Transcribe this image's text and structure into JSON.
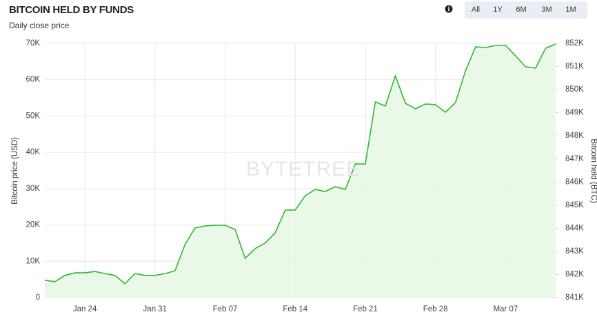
{
  "chart_data": {
    "type": "line",
    "title": "BITCOIN HELD BY FUNDS",
    "subtitle": "Daily close price",
    "watermark": "BYTETREE",
    "range_buttons": [
      "All",
      "1Y",
      "6M",
      "3M",
      "1M"
    ],
    "y_label": "Bitcoin price (USD)",
    "y2_label": "Bitcoin held (BTC)",
    "categories": [
      null,
      null,
      null,
      null,
      "Jan 24",
      null,
      null,
      null,
      null,
      null,
      null,
      "Jan 31",
      null,
      null,
      null,
      null,
      null,
      null,
      "Feb 07",
      null,
      null,
      null,
      null,
      null,
      null,
      "Feb 14",
      null,
      null,
      null,
      null,
      null,
      null,
      "Feb 21",
      null,
      null,
      null,
      null,
      null,
      null,
      "Feb 28",
      null,
      null,
      null,
      null,
      null,
      null,
      "Mar 07",
      null,
      null,
      null,
      null,
      null
    ],
    "ylim": [
      0,
      70000
    ],
    "yticks": [
      0,
      {
        "value": 10000,
        "label": "10K"
      },
      {
        "value": 20000,
        "label": "20K"
      },
      {
        "value": 30000,
        "label": "30K"
      },
      {
        "value": 40000,
        "label": "40K"
      },
      {
        "value": 50000,
        "label": "50K"
      },
      {
        "value": 60000,
        "label": "60K"
      },
      {
        "value": 70000,
        "label": "70K"
      }
    ],
    "y2lim": [
      841000,
      852000
    ],
    "y2ticks": [
      {
        "value": 841000,
        "label": "841K"
      },
      {
        "value": 842000,
        "label": "842K"
      },
      {
        "value": 843000,
        "label": "843K"
      },
      {
        "value": 844000,
        "label": "844K"
      },
      {
        "value": 845000,
        "label": "845K"
      },
      {
        "value": 846000,
        "label": "846K"
      },
      {
        "value": 847000,
        "label": "847K"
      },
      {
        "value": 848000,
        "label": "848K"
      },
      {
        "value": 849000,
        "label": "849K"
      },
      {
        "value": 850000,
        "label": "850K"
      },
      {
        "value": 851000,
        "label": "851K"
      },
      {
        "value": 852000,
        "label": "852K"
      }
    ],
    "grid": true,
    "series": [
      {
        "name": "Bitcoin held (BTC)",
        "color": "#2db82d",
        "fill": "#e6f7e4",
        "axis": "y2",
        "values": [
          841750,
          841690,
          841960,
          842070,
          842070,
          842130,
          842040,
          841960,
          841600,
          842040,
          841960,
          841960,
          842040,
          842160,
          843300,
          844010,
          844100,
          844130,
          844130,
          843950,
          842700,
          843120,
          843360,
          843800,
          844790,
          844790,
          845410,
          845680,
          845590,
          845800,
          845680,
          846780,
          846780,
          849470,
          849290,
          850600,
          849410,
          849170,
          849380,
          849350,
          849020,
          849440,
          850810,
          851850,
          851820,
          851910,
          851910,
          851460,
          850990,
          850930,
          851790,
          851970
        ]
      }
    ]
  }
}
